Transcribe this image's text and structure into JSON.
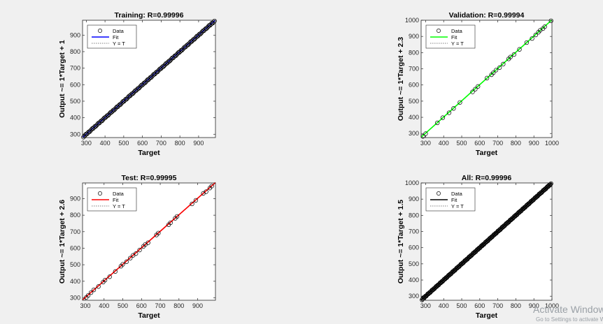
{
  "chart_data": [
    {
      "type": "scatter",
      "title": "Training: R=0.99996",
      "xlabel": "Target",
      "ylabel": "Output ~= 1*Target + 1",
      "xlim": [
        280,
        990
      ],
      "ylim": [
        280,
        990
      ],
      "xticks": [
        300,
        400,
        500,
        600,
        700,
        800,
        900
      ],
      "yticks": [
        300,
        400,
        500,
        600,
        700,
        800,
        900
      ],
      "fit_color": "#0000ff",
      "marker_color": "#000000",
      "point_range": [
        285,
        985
      ],
      "point_count": 150,
      "legend": [
        "Data",
        "Fit",
        "Y = T"
      ],
      "legend_position": "top-left",
      "slope": 1,
      "intercept": 1
    },
    {
      "type": "scatter",
      "title": "Validation: R=0.99994",
      "xlabel": "Target",
      "ylabel": "Output ~= 1*Target + 2.3",
      "xlim": [
        275,
        1000
      ],
      "ylim": [
        275,
        1000
      ],
      "xticks": [
        300,
        400,
        500,
        600,
        700,
        800,
        900,
        1000
      ],
      "yticks": [
        300,
        400,
        500,
        600,
        700,
        800,
        900,
        1000
      ],
      "fit_color": "#00ff00",
      "marker_color": "#000000",
      "points": [
        285,
        300,
        365,
        395,
        430,
        455,
        490,
        560,
        575,
        590,
        640,
        665,
        675,
        690,
        710,
        730,
        760,
        770,
        790,
        820,
        860,
        890,
        910,
        925,
        935,
        950,
        960,
        995
      ],
      "legend": [
        "Data",
        "Fit",
        "Y = T"
      ],
      "legend_position": "top-left",
      "slope": 1,
      "intercept": 2.3
    },
    {
      "type": "scatter",
      "title": "Test: R=0.99995",
      "xlabel": "Target",
      "ylabel": "Output ~= 1*Target + 2.6",
      "xlim": [
        285,
        995
      ],
      "ylim": [
        285,
        995
      ],
      "xticks": [
        300,
        400,
        500,
        600,
        700,
        800,
        900
      ],
      "yticks": [
        300,
        400,
        500,
        600,
        700,
        800,
        900
      ],
      "fit_color": "#ff0000",
      "marker_color": "#000000",
      "points": [
        305,
        315,
        330,
        345,
        370,
        395,
        405,
        430,
        460,
        490,
        500,
        520,
        540,
        555,
        570,
        590,
        610,
        620,
        635,
        680,
        690,
        745,
        755,
        780,
        790,
        870,
        890,
        930,
        945,
        965,
        975
      ],
      "legend": [
        "Data",
        "Fit",
        "Y = T"
      ],
      "legend_position": "top-left",
      "slope": 1,
      "intercept": 2.6
    },
    {
      "type": "scatter",
      "title": "All: R=0.99996",
      "xlabel": "Target",
      "ylabel": "Output ~= 1*Target + 1.5",
      "xlim": [
        275,
        1000
      ],
      "ylim": [
        275,
        1000
      ],
      "xticks": [
        300,
        400,
        500,
        600,
        700,
        800,
        900,
        1000
      ],
      "yticks": [
        300,
        400,
        500,
        600,
        700,
        800,
        900,
        1000
      ],
      "fit_color": "#000000",
      "marker_color": "#000000",
      "point_range": [
        280,
        995
      ],
      "point_count": 220,
      "legend": [
        "Data",
        "Fit",
        "Y = T"
      ],
      "legend_position": "top-left",
      "slope": 1,
      "intercept": 1.5
    }
  ],
  "watermark": {
    "line1": "Activate Windows",
    "line2": "Go to Settings to activate Windows."
  }
}
